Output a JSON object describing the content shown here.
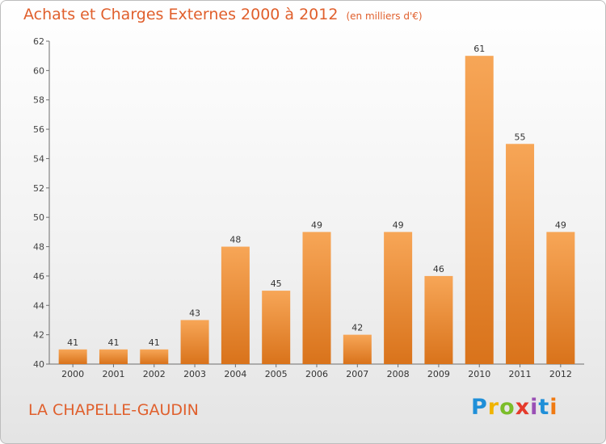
{
  "header": {
    "title": "Achats et Charges Externes 2000 à 2012",
    "unit": "(en milliers d'€)"
  },
  "footer": {
    "location": "LA CHAPELLE-GAUDIN",
    "brand_letters": [
      "P",
      "r",
      "o",
      "x",
      "i",
      "t",
      "i"
    ]
  },
  "colors": {
    "bar_light": "#f7a657",
    "bar_dark": "#d9731b",
    "title": "#e05f2c"
  },
  "chart_data": {
    "type": "bar",
    "categories": [
      "2000",
      "2001",
      "2002",
      "2003",
      "2004",
      "2005",
      "2006",
      "2007",
      "2008",
      "2009",
      "2010",
      "2011",
      "2012"
    ],
    "values": [
      41,
      41,
      41,
      43,
      48,
      45,
      49,
      42,
      49,
      46,
      61,
      55,
      49
    ],
    "ylim": [
      40,
      62
    ],
    "yticks": [
      40,
      42,
      44,
      46,
      48,
      50,
      52,
      54,
      56,
      58,
      60,
      62
    ],
    "grid": false
  }
}
